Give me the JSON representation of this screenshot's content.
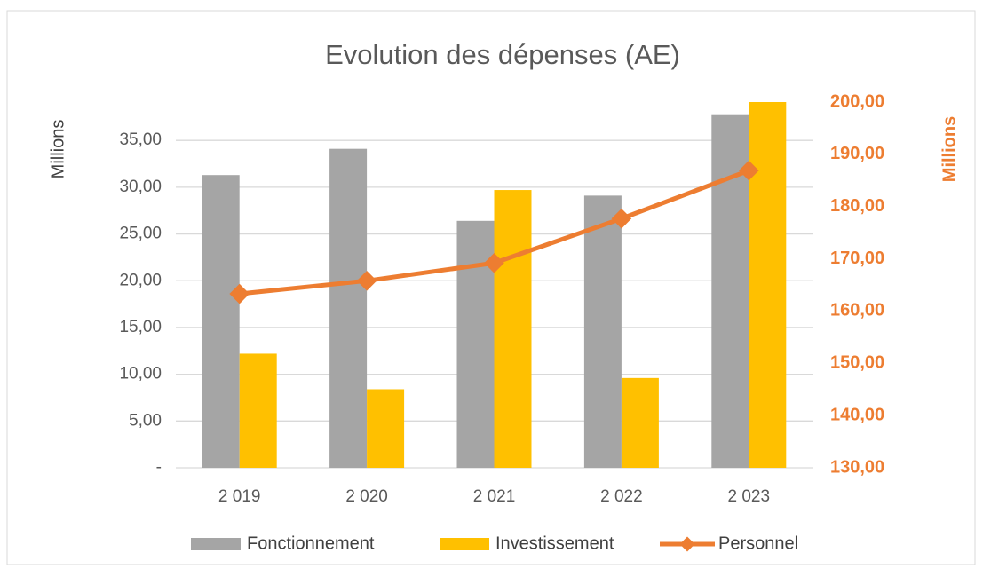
{
  "chart_data": {
    "type": "bar",
    "title": "Evolution des dépenses (AE)",
    "ylabel": "Millions",
    "y2label": "Millions",
    "categories": [
      "2 019",
      "2 020",
      "2 021",
      "2 022",
      "2 023"
    ],
    "series": [
      {
        "name": "Fonctionnement",
        "color": "#a5a5a5",
        "type": "bar",
        "values": [
          31.3,
          34.1,
          26.4,
          29.1,
          37.8
        ]
      },
      {
        "name": "Investissement",
        "color": "#ffc000",
        "type": "bar",
        "values": [
          12.2,
          8.4,
          29.7,
          9.6,
          39.1
        ]
      },
      {
        "name": "Personnel",
        "color": "#ed7d31",
        "type": "line",
        "axis": "y2",
        "values": [
          163.3,
          165.8,
          169.2,
          177.7,
          186.9
        ]
      }
    ],
    "ylim": [
      0,
      39.1
    ],
    "yticks": [
      {
        "value": 0,
        "label": "-"
      },
      {
        "value": 5,
        "label": "5,00"
      },
      {
        "value": 10,
        "label": "10,00"
      },
      {
        "value": 15,
        "label": "15,00"
      },
      {
        "value": 20,
        "label": "20,00"
      },
      {
        "value": 25,
        "label": "25,00"
      },
      {
        "value": 30,
        "label": "30,00"
      },
      {
        "value": 35,
        "label": "35,00"
      }
    ],
    "y2lim": [
      130,
      200
    ],
    "y2ticks": [
      {
        "value": 130,
        "label": "130,00"
      },
      {
        "value": 140,
        "label": "140,00"
      },
      {
        "value": 150,
        "label": "150,00"
      },
      {
        "value": 160,
        "label": "160,00"
      },
      {
        "value": 170,
        "label": "170,00"
      },
      {
        "value": 180,
        "label": "180,00"
      },
      {
        "value": 190,
        "label": "190,00"
      },
      {
        "value": 200,
        "label": "200,00"
      }
    ],
    "grid": true,
    "legend": "bottom"
  }
}
